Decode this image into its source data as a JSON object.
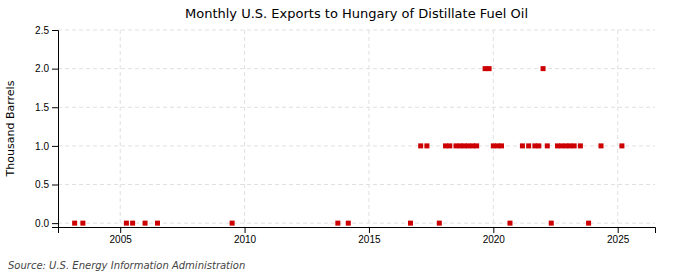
{
  "chart_data": {
    "type": "scatter",
    "title": "Monthly U.S. Exports to Hungary of Distillate Fuel Oil",
    "ylabel": "Thousand Barrels",
    "annotations": [
      "Source: U.S. Energy Information Administration"
    ],
    "color": "#cc0000",
    "marker": "square",
    "grid": true,
    "xlim": [
      2002.5,
      2026.5
    ],
    "xticks": [
      2005,
      2010,
      2015,
      2020,
      2025
    ],
    "ylim": [
      -0.05,
      2.5
    ],
    "yticks": [
      {
        "value": 0.0,
        "label": "0.0"
      },
      0.5,
      {
        "value": 1.0,
        "label": "1.0"
      },
      1.5,
      {
        "value": 2.0,
        "label": "2.0"
      },
      2.5
    ],
    "x": [
      2003.17,
      2003.5,
      2005.25,
      2005.5,
      2006.0,
      2006.5,
      2009.5,
      2013.75,
      2014.17,
      2016.67,
      2017.08,
      2017.33,
      2017.83,
      2018.08,
      2018.25,
      2018.5,
      2018.67,
      2018.83,
      2019.0,
      2019.17,
      2019.33,
      2019.67,
      2019.83,
      2020.0,
      2020.17,
      2020.33,
      2020.67,
      2021.17,
      2021.42,
      2021.67,
      2021.83,
      2022.0,
      2022.17,
      2022.33,
      2022.58,
      2022.75,
      2022.92,
      2023.08,
      2023.25,
      2023.5,
      2023.83,
      2024.33,
      2025.17
    ],
    "values": [
      0,
      0,
      0,
      0,
      0,
      0,
      0,
      0,
      0,
      0,
      1,
      1,
      0,
      1,
      1,
      1,
      1,
      1,
      1,
      1,
      1,
      2,
      2,
      1,
      1,
      1,
      0,
      1,
      1,
      1,
      1,
      2,
      1,
      0,
      1,
      1,
      1,
      1,
      1,
      1,
      0,
      1,
      1
    ]
  }
}
